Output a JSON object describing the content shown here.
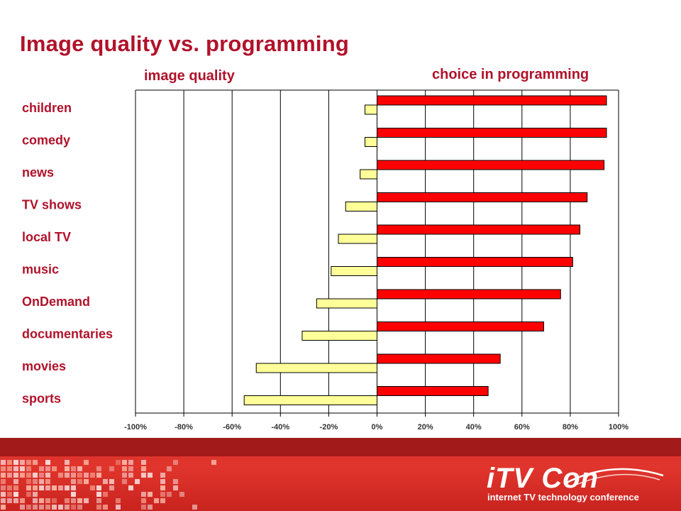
{
  "slide": {
    "title": "Image quality vs. programming",
    "left_label": "image quality",
    "right_label": "choice in programming"
  },
  "footer": {
    "brand": "iTV Con",
    "tagline": "internet TV technology conference"
  },
  "colors": {
    "accent": "#b0122a",
    "programming_bar": "#ff0000",
    "quality_bar": "#ffff99"
  },
  "chart_data": {
    "type": "bar",
    "orientation": "horizontal",
    "categories": [
      "children",
      "comedy",
      "news",
      "TV shows",
      "local TV",
      "music",
      "OnDemand",
      "documentaries",
      "movies",
      "sports"
    ],
    "series": [
      {
        "name": "choice in programming",
        "values": [
          95,
          95,
          94,
          87,
          84,
          81,
          76,
          69,
          51,
          46
        ]
      },
      {
        "name": "image quality",
        "values": [
          -5,
          -5,
          -7,
          -13,
          -16,
          -19,
          -25,
          -31,
          -50,
          -55
        ]
      }
    ],
    "xlim": [
      -100,
      100
    ],
    "xticks": [
      "-100%",
      "-80%",
      "-60%",
      "-40%",
      "-20%",
      "0%",
      "20%",
      "40%",
      "60%",
      "80%",
      "100%"
    ],
    "grid": true
  }
}
